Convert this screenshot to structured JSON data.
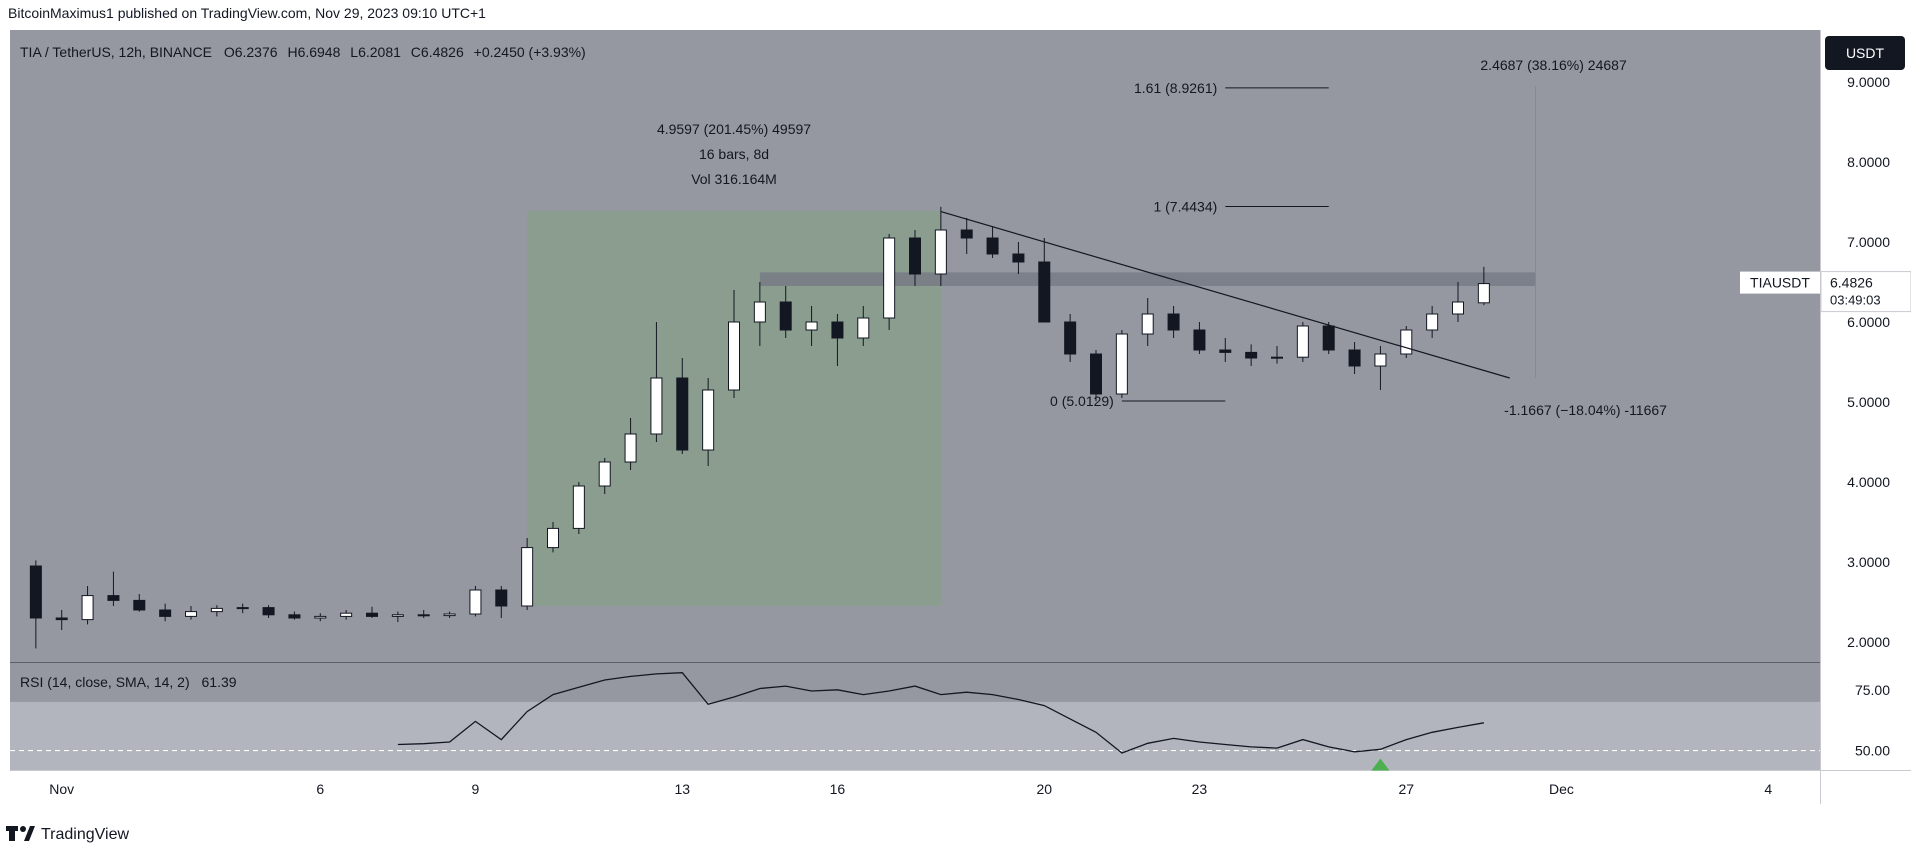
{
  "header": {
    "published_by": "BitcoinMaximus1 published on TradingView.com, Nov 29, 2023 09:10 UTC+1"
  },
  "symbol_bar": {
    "title": "TIA / TetherUS, 12h, BINANCE",
    "open_label": "O",
    "open": "6.2376",
    "high_label": "H",
    "high": "6.6948",
    "low_label": "L",
    "low": "6.2081",
    "close_label": "C",
    "close": "6.4826",
    "change": "+0.2450 (+3.93%)"
  },
  "currency_button": "USDT",
  "price_tag": {
    "symbol": "TIAUSDT",
    "price": "6.4826",
    "countdown": "03:49:03"
  },
  "rsi_panel": {
    "label": "RSI (14, close, SMA, 14, 2)",
    "value": "61.39"
  },
  "footer": {
    "brand": "TradingView"
  },
  "colors": {
    "background": "#9598a1",
    "rsi_background": "#9598a1",
    "rsi_band": "#b2b5be",
    "candle_up": "#ffffff",
    "candle_down": "#131722",
    "range_box": "#8a9d8e",
    "resistance_zone": "#787b86",
    "signal_arrow": "#4caf50"
  },
  "chart_data": {
    "type": "candlestick",
    "timeframe": "12h",
    "y_axis": {
      "ticks": [
        2.0,
        3.0,
        4.0,
        5.0,
        6.0,
        7.0,
        8.0,
        9.0
      ],
      "tick_labels": [
        "2.0000",
        "3.0000",
        "4.0000",
        "5.0000",
        "6.0000",
        "7.0000",
        "8.0000",
        "9.0000"
      ],
      "range": [
        1.75,
        9.65
      ]
    },
    "x_axis": {
      "range": [
        "2023-10-31",
        "2023-12-05"
      ],
      "ticks": [
        {
          "date": "2023-11-01",
          "label": "Nov"
        },
        {
          "date": "2023-11-06",
          "label": "6"
        },
        {
          "date": "2023-11-09",
          "label": "9"
        },
        {
          "date": "2023-11-13",
          "label": "13"
        },
        {
          "date": "2023-11-16",
          "label": "16"
        },
        {
          "date": "2023-11-20",
          "label": "20"
        },
        {
          "date": "2023-11-23",
          "label": "23"
        },
        {
          "date": "2023-11-27",
          "label": "27"
        },
        {
          "date": "2023-11-30",
          "label": "Dec"
        },
        {
          "date": "2023-12-04",
          "label": "4"
        }
      ]
    },
    "candles": [
      {
        "t": "2023-10-31 12:00",
        "o": 2.95,
        "h": 3.02,
        "l": 1.92,
        "c": 2.3
      },
      {
        "t": "2023-11-01 00:00",
        "o": 2.3,
        "h": 2.4,
        "l": 2.15,
        "c": 2.28
      },
      {
        "t": "2023-11-01 12:00",
        "o": 2.28,
        "h": 2.7,
        "l": 2.22,
        "c": 2.58
      },
      {
        "t": "2023-11-02 00:00",
        "o": 2.58,
        "h": 2.88,
        "l": 2.45,
        "c": 2.52
      },
      {
        "t": "2023-11-02 12:00",
        "o": 2.52,
        "h": 2.6,
        "l": 2.38,
        "c": 2.4
      },
      {
        "t": "2023-11-03 00:00",
        "o": 2.4,
        "h": 2.48,
        "l": 2.26,
        "c": 2.32
      },
      {
        "t": "2023-11-03 12:00",
        "o": 2.32,
        "h": 2.45,
        "l": 2.28,
        "c": 2.38
      },
      {
        "t": "2023-11-04 00:00",
        "o": 2.38,
        "h": 2.46,
        "l": 2.32,
        "c": 2.42
      },
      {
        "t": "2023-11-04 12:00",
        "o": 2.42,
        "h": 2.48,
        "l": 2.36,
        "c": 2.43
      },
      {
        "t": "2023-11-05 00:00",
        "o": 2.43,
        "h": 2.46,
        "l": 2.3,
        "c": 2.34
      },
      {
        "t": "2023-11-05 12:00",
        "o": 2.34,
        "h": 2.38,
        "l": 2.28,
        "c": 2.3
      },
      {
        "t": "2023-11-06 00:00",
        "o": 2.3,
        "h": 2.36,
        "l": 2.26,
        "c": 2.32
      },
      {
        "t": "2023-11-06 12:00",
        "o": 2.32,
        "h": 2.4,
        "l": 2.28,
        "c": 2.36
      },
      {
        "t": "2023-11-07 00:00",
        "o": 2.36,
        "h": 2.44,
        "l": 2.3,
        "c": 2.32
      },
      {
        "t": "2023-11-07 12:00",
        "o": 2.32,
        "h": 2.38,
        "l": 2.25,
        "c": 2.34
      },
      {
        "t": "2023-11-08 00:00",
        "o": 2.34,
        "h": 2.4,
        "l": 2.3,
        "c": 2.33
      },
      {
        "t": "2023-11-08 12:00",
        "o": 2.33,
        "h": 2.38,
        "l": 2.3,
        "c": 2.35
      },
      {
        "t": "2023-11-09 00:00",
        "o": 2.35,
        "h": 2.7,
        "l": 2.32,
        "c": 2.65
      },
      {
        "t": "2023-11-09 12:00",
        "o": 2.65,
        "h": 2.7,
        "l": 2.3,
        "c": 2.45
      },
      {
        "t": "2023-11-10 00:00",
        "o": 2.45,
        "h": 3.3,
        "l": 2.4,
        "c": 3.18
      },
      {
        "t": "2023-11-10 12:00",
        "o": 3.18,
        "h": 3.5,
        "l": 3.12,
        "c": 3.42
      },
      {
        "t": "2023-11-11 00:00",
        "o": 3.42,
        "h": 4.0,
        "l": 3.35,
        "c": 3.95
      },
      {
        "t": "2023-11-11 12:00",
        "o": 3.95,
        "h": 4.3,
        "l": 3.85,
        "c": 4.25
      },
      {
        "t": "2023-11-12 00:00",
        "o": 4.25,
        "h": 4.8,
        "l": 4.15,
        "c": 4.6
      },
      {
        "t": "2023-11-12 12:00",
        "o": 4.6,
        "h": 6.0,
        "l": 4.5,
        "c": 5.3
      },
      {
        "t": "2023-11-13 00:00",
        "o": 5.3,
        "h": 5.55,
        "l": 4.35,
        "c": 4.4
      },
      {
        "t": "2023-11-13 12:00",
        "o": 4.4,
        "h": 5.3,
        "l": 4.2,
        "c": 5.15
      },
      {
        "t": "2023-11-14 00:00",
        "o": 5.15,
        "h": 6.4,
        "l": 5.05,
        "c": 6.0
      },
      {
        "t": "2023-11-14 12:00",
        "o": 6.0,
        "h": 6.5,
        "l": 5.7,
        "c": 6.25
      },
      {
        "t": "2023-11-15 00:00",
        "o": 6.25,
        "h": 6.45,
        "l": 5.8,
        "c": 5.9
      },
      {
        "t": "2023-11-15 12:00",
        "o": 5.9,
        "h": 6.2,
        "l": 5.7,
        "c": 6.0
      },
      {
        "t": "2023-11-16 00:00",
        "o": 6.0,
        "h": 6.1,
        "l": 5.45,
        "c": 5.8
      },
      {
        "t": "2023-11-16 12:00",
        "o": 5.8,
        "h": 6.2,
        "l": 5.7,
        "c": 6.05
      },
      {
        "t": "2023-11-17 00:00",
        "o": 6.05,
        "h": 7.1,
        "l": 5.9,
        "c": 7.05
      },
      {
        "t": "2023-11-17 12:00",
        "o": 7.05,
        "h": 7.15,
        "l": 6.45,
        "c": 6.6
      },
      {
        "t": "2023-11-18 00:00",
        "o": 6.6,
        "h": 7.44,
        "l": 6.45,
        "c": 7.15
      },
      {
        "t": "2023-11-18 12:00",
        "o": 7.15,
        "h": 7.3,
        "l": 6.85,
        "c": 7.05
      },
      {
        "t": "2023-11-19 00:00",
        "o": 7.05,
        "h": 7.2,
        "l": 6.8,
        "c": 6.85
      },
      {
        "t": "2023-11-19 12:00",
        "o": 6.85,
        "h": 7.0,
        "l": 6.6,
        "c": 6.75
      },
      {
        "t": "2023-11-20 00:00",
        "o": 6.75,
        "h": 7.05,
        "l": 6.0,
        "c": 6.0
      },
      {
        "t": "2023-11-20 12:00",
        "o": 6.0,
        "h": 6.1,
        "l": 5.5,
        "c": 5.6
      },
      {
        "t": "2023-11-21 00:00",
        "o": 5.6,
        "h": 5.65,
        "l": 5.01,
        "c": 5.1
      },
      {
        "t": "2023-11-21 12:00",
        "o": 5.1,
        "h": 5.9,
        "l": 5.05,
        "c": 5.85
      },
      {
        "t": "2023-11-22 00:00",
        "o": 5.85,
        "h": 6.3,
        "l": 5.7,
        "c": 6.1
      },
      {
        "t": "2023-11-22 12:00",
        "o": 6.1,
        "h": 6.2,
        "l": 5.8,
        "c": 5.9
      },
      {
        "t": "2023-11-23 00:00",
        "o": 5.9,
        "h": 6.0,
        "l": 5.6,
        "c": 5.65
      },
      {
        "t": "2023-11-23 12:00",
        "o": 5.65,
        "h": 5.8,
        "l": 5.5,
        "c": 5.62
      },
      {
        "t": "2023-11-24 00:00",
        "o": 5.62,
        "h": 5.72,
        "l": 5.45,
        "c": 5.55
      },
      {
        "t": "2023-11-24 12:00",
        "o": 5.55,
        "h": 5.7,
        "l": 5.48,
        "c": 5.56
      },
      {
        "t": "2023-11-25 00:00",
        "o": 5.56,
        "h": 6.0,
        "l": 5.5,
        "c": 5.95
      },
      {
        "t": "2023-11-25 12:00",
        "o": 5.95,
        "h": 6.0,
        "l": 5.6,
        "c": 5.65
      },
      {
        "t": "2023-11-26 00:00",
        "o": 5.65,
        "h": 5.75,
        "l": 5.35,
        "c": 5.45
      },
      {
        "t": "2023-11-26 12:00",
        "o": 5.45,
        "h": 5.7,
        "l": 5.15,
        "c": 5.6
      },
      {
        "t": "2023-11-27 00:00",
        "o": 5.6,
        "h": 5.95,
        "l": 5.55,
        "c": 5.9
      },
      {
        "t": "2023-11-27 12:00",
        "o": 5.9,
        "h": 6.2,
        "l": 5.8,
        "c": 6.1
      },
      {
        "t": "2023-11-28 00:00",
        "o": 6.1,
        "h": 6.5,
        "l": 6.0,
        "c": 6.25
      },
      {
        "t": "2023-11-28 12:00",
        "o": 6.24,
        "h": 6.69,
        "l": 6.21,
        "c": 6.48
      }
    ],
    "annotations": {
      "range_box": {
        "from": "2023-11-10 00:00",
        "to": "2023-11-18 00:00",
        "low": 2.45,
        "high": 7.39,
        "labels": [
          "4.9597 (201.45%) 49597",
          "16 bars, 8d",
          "Vol 316.164M"
        ]
      },
      "resistance_zone": {
        "from": "2023-11-14 12:00",
        "to": "2023-11-29 12:00",
        "low": 6.45,
        "high": 6.62
      },
      "descending_trendline": {
        "from": {
          "t": "2023-11-18 00:00",
          "price": 7.38
        },
        "to": {
          "t": "2023-11-29 00:00",
          "price": 5.3
        }
      },
      "fib_levels": [
        {
          "label": "1.61 (8.9261)",
          "price": 8.9261,
          "from": "2023-11-23 12:00",
          "to": "2023-11-25 12:00"
        },
        {
          "label": "1 (7.4434)",
          "price": 7.4434,
          "from": "2023-11-23 12:00",
          "to": "2023-11-25 12:00"
        },
        {
          "label": "0 (5.0129)",
          "price": 5.0129,
          "from": "2023-11-21 12:00",
          "to": "2023-11-23 12:00"
        }
      ],
      "measure_up": {
        "label": "2.4687 (38.16%) 24687",
        "at": "2023-11-29 12:00",
        "from_price": 6.48,
        "to_price": 8.95
      },
      "measure_down": {
        "label": "-1.1667 (−18.04%) -11667",
        "at": "2023-11-29 12:00",
        "price": 5.3
      }
    },
    "rsi": {
      "y_ticks": [
        50,
        75
      ],
      "tick_labels": [
        "50.00",
        "75.00"
      ],
      "range": [
        42,
        86
      ],
      "band": [
        40,
        70
      ],
      "values": [
        {
          "t": "2023-11-07 12:00",
          "v": 52.5
        },
        {
          "t": "2023-11-08 00:00",
          "v": 52.8
        },
        {
          "t": "2023-11-08 12:00",
          "v": 53.5
        },
        {
          "t": "2023-11-09 00:00",
          "v": 62.0
        },
        {
          "t": "2023-11-09 12:00",
          "v": 54.5
        },
        {
          "t": "2023-11-10 00:00",
          "v": 66.0
        },
        {
          "t": "2023-11-10 12:00",
          "v": 73.0
        },
        {
          "t": "2023-11-11 00:00",
          "v": 76.0
        },
        {
          "t": "2023-11-11 12:00",
          "v": 79.0
        },
        {
          "t": "2023-11-12 00:00",
          "v": 80.5
        },
        {
          "t": "2023-11-12 12:00",
          "v": 81.5
        },
        {
          "t": "2023-11-13 00:00",
          "v": 82.0
        },
        {
          "t": "2023-11-13 12:00",
          "v": 69.0
        },
        {
          "t": "2023-11-14 00:00",
          "v": 72.0
        },
        {
          "t": "2023-11-14 12:00",
          "v": 75.5
        },
        {
          "t": "2023-11-15 00:00",
          "v": 76.5
        },
        {
          "t": "2023-11-15 12:00",
          "v": 74.5
        },
        {
          "t": "2023-11-16 00:00",
          "v": 75.0
        },
        {
          "t": "2023-11-16 12:00",
          "v": 73.0
        },
        {
          "t": "2023-11-17 00:00",
          "v": 74.5
        },
        {
          "t": "2023-11-17 12:00",
          "v": 76.5
        },
        {
          "t": "2023-11-18 00:00",
          "v": 73.0
        },
        {
          "t": "2023-11-18 12:00",
          "v": 74.0
        },
        {
          "t": "2023-11-19 00:00",
          "v": 73.0
        },
        {
          "t": "2023-11-19 12:00",
          "v": 71.0
        },
        {
          "t": "2023-11-20 00:00",
          "v": 68.5
        },
        {
          "t": "2023-11-20 12:00",
          "v": 63.0
        },
        {
          "t": "2023-11-21 00:00",
          "v": 57.5
        },
        {
          "t": "2023-11-21 12:00",
          "v": 49.0
        },
        {
          "t": "2023-11-22 00:00",
          "v": 53.0
        },
        {
          "t": "2023-11-22 12:00",
          "v": 55.0
        },
        {
          "t": "2023-11-23 00:00",
          "v": 53.5
        },
        {
          "t": "2023-11-23 12:00",
          "v": 52.5
        },
        {
          "t": "2023-11-24 00:00",
          "v": 51.5
        },
        {
          "t": "2023-11-24 12:00",
          "v": 51.0
        },
        {
          "t": "2023-11-25 00:00",
          "v": 54.5
        },
        {
          "t": "2023-11-25 12:00",
          "v": 51.5
        },
        {
          "t": "2023-11-26 00:00",
          "v": 49.5
        },
        {
          "t": "2023-11-26 12:00",
          "v": 50.5
        },
        {
          "t": "2023-11-27 00:00",
          "v": 54.5
        },
        {
          "t": "2023-11-27 12:00",
          "v": 57.5
        },
        {
          "t": "2023-11-28 00:00",
          "v": 59.5
        },
        {
          "t": "2023-11-28 12:00",
          "v": 61.39
        }
      ],
      "signal": {
        "t": "2023-11-26 12:00"
      }
    }
  }
}
